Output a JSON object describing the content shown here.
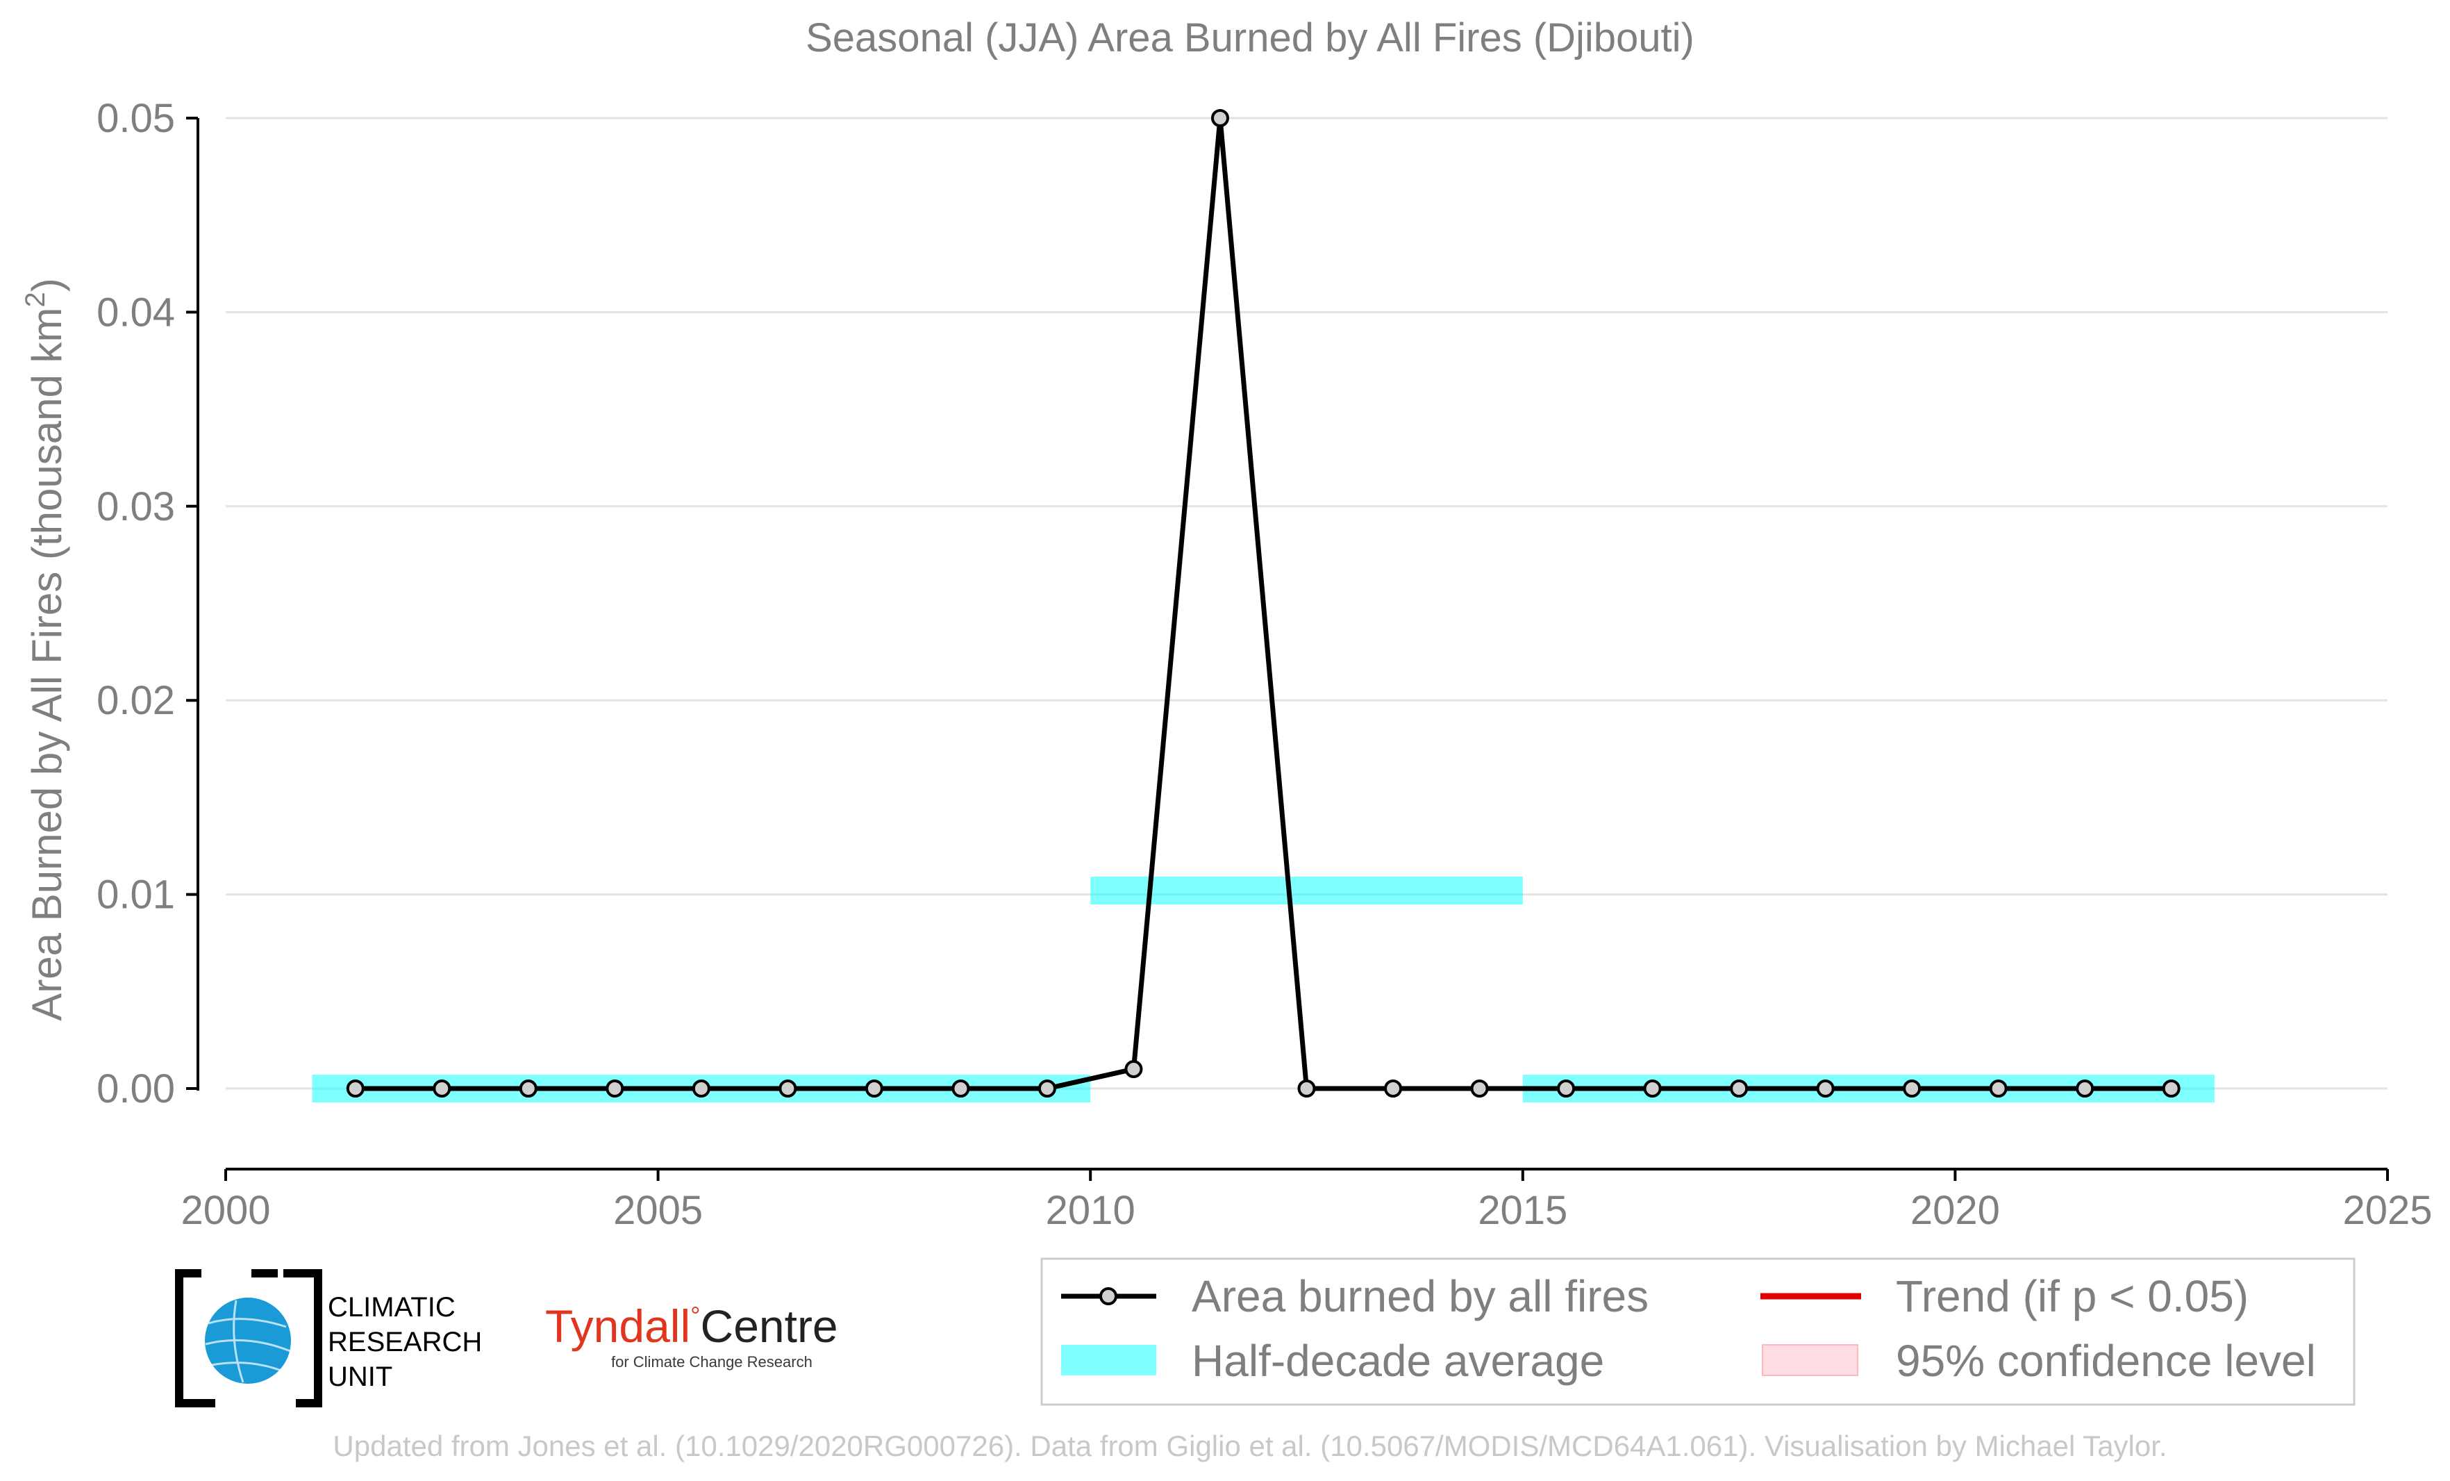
{
  "chart_data": {
    "type": "line",
    "title": "Seasonal (JJA) Area Burned by All Fires (Djibouti)",
    "ylabel": "Area Burned by All Fires (thousand km",
    "ylabel_sup": "2",
    "ylabel_end": ")",
    "xlim": [
      2000,
      2025
    ],
    "ylim": [
      -0.004,
      0.05
    ],
    "x_ticks": [
      2000,
      2005,
      2010,
      2015,
      2020,
      2025
    ],
    "x_tick_labels": [
      "2000",
      "2005",
      "2010",
      "2015",
      "2020",
      "2025"
    ],
    "y_ticks": [
      0,
      0.01,
      0.02,
      0.03,
      0.04,
      0.05
    ],
    "y_tick_labels": [
      "0.00",
      "0.01",
      "0.02",
      "0.03",
      "0.04",
      "0.05"
    ],
    "grid": "horizontal",
    "series": [
      {
        "name": "Area burned by all fires",
        "color": "#000000",
        "marker_fill": "#d0d0d0",
        "x": [
          2001.5,
          2002.5,
          2003.5,
          2004.5,
          2005.5,
          2006.5,
          2007.5,
          2008.5,
          2009.5,
          2010.5,
          2011.5,
          2012.5,
          2013.5,
          2014.5,
          2015.5,
          2016.5,
          2017.5,
          2018.5,
          2019.5,
          2020.5,
          2021.5,
          2022.5
        ],
        "values": [
          0,
          0,
          0,
          0,
          0,
          0,
          0,
          0,
          0,
          0.001,
          0.05,
          0,
          0,
          0,
          0,
          0,
          0,
          0,
          0,
          0,
          0,
          0
        ]
      }
    ],
    "half_decade_average": {
      "name": "Half-decade average",
      "color": "#00ffff",
      "segments": [
        {
          "x_start": 2001,
          "x_end": 2010,
          "value": 0
        },
        {
          "x_start": 2010,
          "x_end": 2015,
          "value": 0.0102
        },
        {
          "x_start": 2015,
          "x_end": 2023,
          "value": 0
        }
      ]
    },
    "legend": {
      "placement": "bottom-right",
      "entries": [
        {
          "label": "Area burned by all fires",
          "kind": "line-marker",
          "color": "#000000"
        },
        {
          "label": "Trend (if p < 0.05)",
          "kind": "line",
          "color": "#e00000"
        },
        {
          "label": "Half-decade average",
          "kind": "band",
          "color": "#00ffff"
        },
        {
          "label": "95% confidence level",
          "kind": "band",
          "color": "#ffb6c1"
        }
      ]
    }
  },
  "logos": {
    "cru_lines": [
      "CLIMATIC",
      "RESEARCH",
      "UNIT"
    ],
    "tyndall_word": "Tyndall",
    "tyndall_degree": "°",
    "tyndall_centre": "Centre",
    "tyndall_sub": "for Climate Change Research",
    "tyndall_color": "#e1351e"
  },
  "footer": "Updated from Jones et al. (10.1029/2020RG000726). Data from Giglio et al. (10.5067/MODIS/MCD64A1.061). Visualisation by Michael Taylor."
}
